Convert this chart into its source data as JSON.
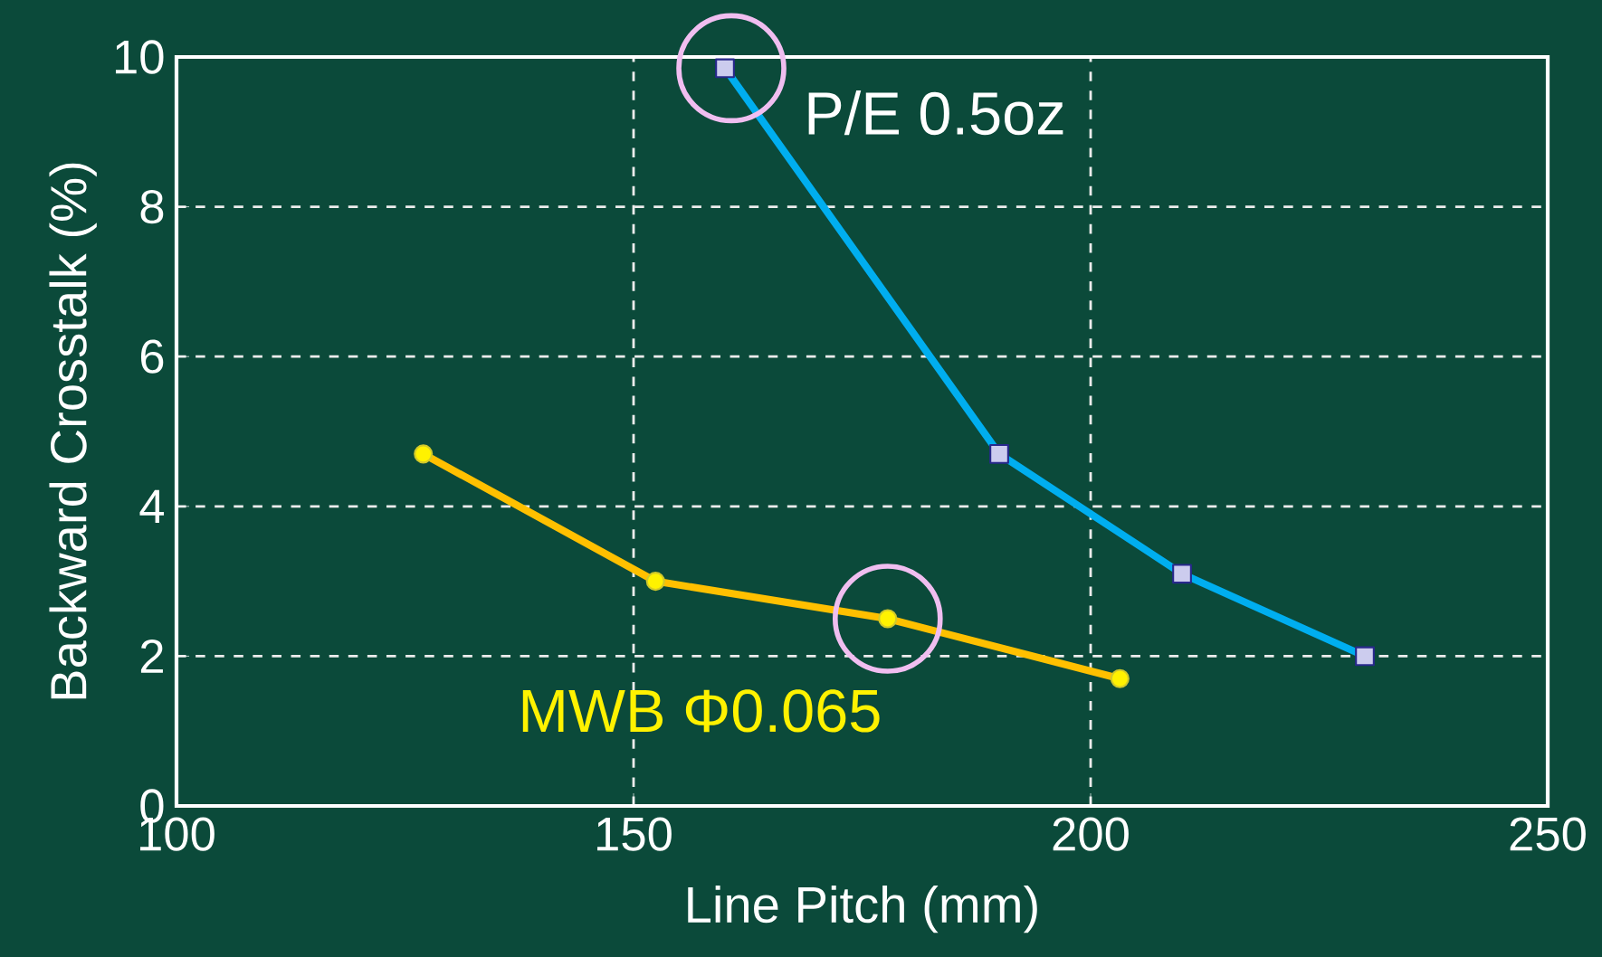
{
  "chart_data": {
    "type": "line",
    "xlabel": "Line Pitch (mm)",
    "ylabel": "Backward Crosstalk (%)",
    "xlim": [
      100,
      250
    ],
    "ylim": [
      0,
      10
    ],
    "xticks": [
      100,
      150,
      200,
      250
    ],
    "yticks": [
      0,
      2,
      4,
      6,
      8,
      10
    ],
    "grid": true,
    "series": [
      {
        "name": "P/E 0.5oz",
        "color": "#00aeef",
        "marker": "square",
        "x": [
          160,
          190,
          210,
          230
        ],
        "values": [
          9.85,
          4.7,
          3.1,
          2.0
        ]
      },
      {
        "name": "MWB  Φ0.065",
        "color": "#ffc000",
        "marker": "circle",
        "x": [
          127,
          152.4,
          177.8,
          203.2
        ],
        "values": [
          4.7,
          3.0,
          2.5,
          1.7
        ]
      }
    ]
  }
}
